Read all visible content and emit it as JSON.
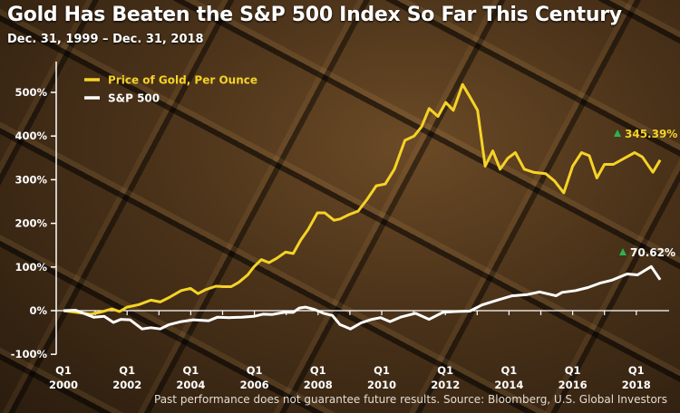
{
  "chart_data": {
    "type": "line",
    "title": "Gold Has Beaten the S&P 500 Index So Far This Century",
    "subtitle": "Dec. 31, 1999 – Dec. 31, 2018",
    "footnote": "Past performance does not guarantee future results.  Source: Bloomberg, U.S. Global Investors",
    "xlabel": "",
    "ylabel": "",
    "ylim": [
      -100,
      500
    ],
    "xlim": [
      2000,
      2018.9
    ],
    "y_ticks": [
      "500%",
      "400%",
      "300%",
      "200%",
      "100%",
      "0%",
      "-100%"
    ],
    "y_tick_values": [
      500,
      400,
      300,
      200,
      100,
      0,
      -100
    ],
    "x_ticks": [
      {
        "q": "Q1",
        "year": "2000",
        "value": 2000
      },
      {
        "q": "Q1",
        "year": "2002",
        "value": 2002
      },
      {
        "q": "Q1",
        "year": "2004",
        "value": 2004
      },
      {
        "q": "Q1",
        "year": "2006",
        "value": 2006
      },
      {
        "q": "Q1",
        "year": "2008",
        "value": 2008
      },
      {
        "q": "Q1",
        "year": "2010",
        "value": 2010
      },
      {
        "q": "Q1",
        "year": "2012",
        "value": 2012
      },
      {
        "q": "Q1",
        "year": "2014",
        "value": 2014
      },
      {
        "q": "Q1",
        "year": "2016",
        "value": 2016
      },
      {
        "q": "Q1",
        "year": "2018",
        "value": 2018
      }
    ],
    "legend_position": "top-left",
    "grid": false,
    "series": [
      {
        "name": "Price of Gold, Per Ounce",
        "color": "#f5d327",
        "end_label": "345.39%",
        "x": [
          2000,
          2000.85,
          2001.14,
          2001.52,
          2001.76,
          2002.0,
          2002.37,
          2002.75,
          2003.04,
          2003.32,
          2003.7,
          2003.99,
          2004.23,
          2004.46,
          2004.79,
          2005.03,
          2005.27,
          2005.51,
          2005.79,
          2005.98,
          2006.22,
          2006.46,
          2006.7,
          2006.98,
          2007.22,
          2007.46,
          2007.69,
          2007.98,
          2008.21,
          2008.5,
          2008.69,
          2008.97,
          2009.26,
          2009.54,
          2009.83,
          2010.11,
          2010.4,
          2010.73,
          2011.02,
          2011.25,
          2011.49,
          2011.77,
          2012.01,
          2012.25,
          2012.54,
          2012.77,
          2013.01,
          2013.25,
          2013.49,
          2013.72,
          2013.96,
          2014.2,
          2014.48,
          2014.77,
          2015.15,
          2015.43,
          2015.72,
          2016.0,
          2016.28,
          2016.52,
          2016.76,
          2017.0,
          2017.28,
          2017.62,
          2017.95,
          2018.19,
          2018.52,
          2018.75
        ],
        "y": [
          0,
          -8,
          -4,
          4,
          -2,
          8,
          14,
          24,
          20,
          30,
          46,
          51,
          39,
          48,
          56,
          55,
          55,
          65,
          82,
          100,
          117,
          110,
          120,
          134,
          131,
          162,
          186,
          224,
          224,
          207,
          210,
          220,
          228,
          255,
          286,
          290,
          324,
          390,
          400,
          421,
          463,
          445,
          477,
          459,
          518,
          490,
          459,
          331,
          366,
          324,
          349,
          362,
          324,
          317,
          314,
          297,
          270,
          331,
          362,
          355,
          304,
          335,
          335,
          349,
          362,
          352,
          317,
          345
        ]
      },
      {
        "name": "S&P 500",
        "color": "#ffffff",
        "end_label": "70.62%",
        "x": [
          2000,
          2000.38,
          2000.95,
          2001.28,
          2001.57,
          2001.8,
          2002.09,
          2002.47,
          2002.75,
          2003.04,
          2003.32,
          2003.7,
          2004.08,
          2004.56,
          2004.84,
          2005.22,
          2005.6,
          2005.98,
          2006.27,
          2006.55,
          2006.93,
          2007.22,
          2007.41,
          2007.6,
          2007.88,
          2008.17,
          2008.45,
          2008.69,
          2009.02,
          2009.35,
          2009.69,
          2009.97,
          2010.26,
          2010.59,
          2011.06,
          2011.49,
          2011.92,
          2012.3,
          2012.77,
          2013.15,
          2013.63,
          2014.1,
          2014.58,
          2014.96,
          2015.48,
          2015.67,
          2016.1,
          2016.48,
          2016.86,
          2017.24,
          2017.71,
          2018.04,
          2018.47,
          2018.75
        ],
        "y": [
          0,
          1,
          -15,
          -13,
          -27,
          -20,
          -21,
          -42,
          -39,
          -42,
          -32,
          -25,
          -21,
          -23,
          -15,
          -16,
          -15,
          -13,
          -8,
          -9,
          -4,
          -4,
          6,
          8,
          3,
          -6,
          -11,
          -32,
          -42,
          -28,
          -20,
          -16,
          -25,
          -15,
          -6,
          -20,
          -4,
          -2,
          -1,
          13,
          24,
          34,
          37,
          43,
          34,
          42,
          46,
          53,
          63,
          70,
          84,
          82,
          101,
          71
        ]
      }
    ],
    "annotation_marker_color": "#2db34a"
  }
}
